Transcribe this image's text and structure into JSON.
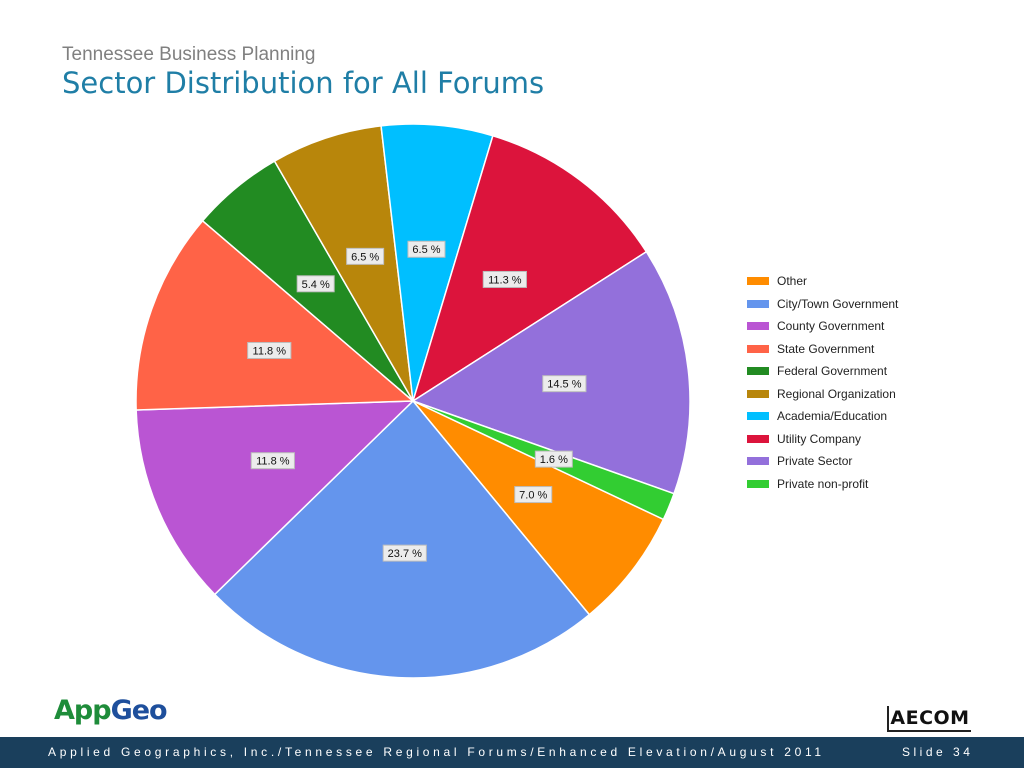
{
  "header": {
    "subtitle": "Tennessee Business Planning",
    "title": "Sector Distribution for All Forums"
  },
  "chart_data": {
    "type": "pie",
    "title": "",
    "categories": [
      "Other",
      "City/Town Government",
      "County Government",
      "State Government",
      "Federal Government",
      "Regional Organization",
      "Academia/Education",
      "Utility Company",
      "Private Sector",
      "Private non-profit"
    ],
    "values": [
      7.0,
      23.7,
      11.8,
      11.8,
      5.4,
      6.5,
      6.5,
      11.3,
      14.5,
      1.6
    ],
    "labels": [
      "7.0 %",
      "23.7 %",
      "11.8 %",
      "11.8 %",
      "5.4 %",
      "6.5 %",
      "6.5 %",
      "11.3 %",
      "14.5 %",
      "1.6 %"
    ],
    "colors": [
      "#ff8c00",
      "#6495ed",
      "#ba55d3",
      "#ff6347",
      "#228b22",
      "#b8860b",
      "#00bfff",
      "#dc143c",
      "#9370db",
      "#32cd32"
    ],
    "legend_position": "right"
  },
  "legend": {
    "items": [
      "Other",
      "City/Town Government",
      "County Government",
      "State Government",
      "Federal Government",
      "Regional Organization",
      "Academia/Education",
      "Utility Company",
      "Private Sector",
      "Private non-profit"
    ]
  },
  "logos": {
    "left_app": "App",
    "left_geo": "Geo",
    "right": "AECOM"
  },
  "footer": {
    "text": "Applied Geographics, Inc./Tennessee Regional Forums/Enhanced Elevation/August 2011",
    "slide": "Slide 34"
  }
}
